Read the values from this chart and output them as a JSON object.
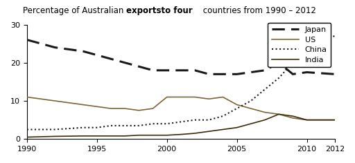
{
  "title_normal1": "Percentage of Australian ",
  "title_bold": "exportsto four",
  "title_normal2": " countries from 1990 – 2012",
  "years": [
    1990,
    1992,
    1994,
    1995,
    1996,
    1997,
    1998,
    1999,
    2000,
    2001,
    2002,
    2003,
    2004,
    2005,
    2006,
    2007,
    2008,
    2009,
    2010,
    2012
  ],
  "japan": [
    26,
    24,
    23,
    22,
    21,
    20,
    19,
    18,
    18,
    18,
    18,
    17,
    17,
    17,
    17.5,
    18,
    20,
    17,
    17.5,
    17
  ],
  "us": [
    11,
    10,
    9,
    8.5,
    8,
    8,
    7.5,
    8,
    11,
    11,
    11,
    10.5,
    11,
    9,
    8,
    7,
    6.5,
    5.5,
    5,
    5
  ],
  "china": [
    2.5,
    2.5,
    3,
    3,
    3.5,
    3.5,
    3.5,
    4,
    4,
    4.5,
    5,
    5,
    6,
    8,
    10,
    13,
    16,
    20,
    25,
    27
  ],
  "india": [
    0.5,
    0.7,
    0.8,
    0.8,
    0.8,
    0.8,
    1,
    1,
    1,
    1.2,
    1.5,
    2,
    2.5,
    3,
    4,
    5,
    6.5,
    6,
    5,
    5
  ],
  "ylim": [
    0,
    30
  ],
  "yticks": [
    0,
    10,
    20,
    30
  ],
  "xticks": [
    1990,
    1995,
    2000,
    2005,
    2010,
    2012
  ],
  "japan_color": "#1a1a1a",
  "us_color": "#7a6535",
  "china_color": "#1a1a1a",
  "india_color": "#3a2a0a",
  "bg_color": "#ffffff",
  "legend_japan": "Japan",
  "legend_us": "US",
  "legend_china": "China",
  "legend_india": "India",
  "title_fontsize": 8.5,
  "axis_fontsize": 8
}
